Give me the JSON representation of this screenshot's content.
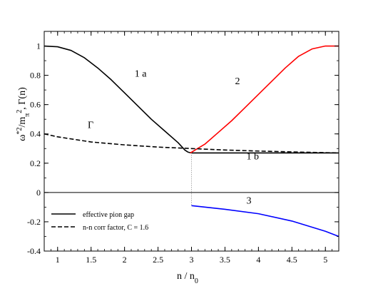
{
  "chart_data": {
    "type": "line",
    "title": "",
    "xlabel": {
      "main": "n / n",
      "sub": "0"
    },
    "ylabel": {
      "part1": "ω",
      "sup1": "*2",
      "part2": "/m",
      "sub2": "π",
      "sup2": "2",
      "part3": ", Γ(n)"
    },
    "xlim": [
      0.8,
      5.2
    ],
    "ylim": [
      -0.4,
      1.1
    ],
    "xticks": [
      1,
      1.5,
      2,
      2.5,
      3,
      3.5,
      4,
      4.5,
      5
    ],
    "xtick_labels": [
      "1",
      "1.5",
      "2",
      "2.5",
      "3",
      "3.5",
      "4",
      "4.5",
      "5"
    ],
    "yticks": [
      -0.4,
      -0.2,
      0,
      0.2,
      0.4,
      0.6,
      0.8,
      1
    ],
    "ytick_labels": [
      "-0.4",
      "-0.2",
      "0",
      "0.2",
      "0.4",
      "0.6",
      "0.8",
      "1"
    ],
    "grid": false,
    "zero_line": true,
    "legend_position": "bottom-left",
    "colors": {
      "branch_1": "#000000",
      "branch_2": "#ff0000",
      "branch_3": "#0000ff",
      "gamma": "#000000",
      "connector": "#808080"
    },
    "series": [
      {
        "name": "effective pion gap",
        "label": "1 a",
        "style": "solid",
        "color": "#000000",
        "x": [
          0.8,
          1.0,
          1.2,
          1.4,
          1.6,
          1.8,
          2.0,
          2.2,
          2.4,
          2.6,
          2.8,
          2.9,
          2.95
        ],
        "y": [
          1.0,
          0.995,
          0.97,
          0.92,
          0.85,
          0.77,
          0.68,
          0.59,
          0.5,
          0.42,
          0.34,
          0.29,
          0.275
        ]
      },
      {
        "name": "",
        "label": "1 b",
        "style": "solid",
        "color": "#000000",
        "x": [
          2.95,
          3.0,
          3.5,
          4.0,
          4.5,
          5.0,
          5.2
        ],
        "y": [
          0.275,
          0.27,
          0.27,
          0.27,
          0.27,
          0.27,
          0.27
        ]
      },
      {
        "name": "",
        "label": "2",
        "style": "solid",
        "color": "#ff0000",
        "x": [
          2.98,
          3.0,
          3.2,
          3.4,
          3.6,
          3.8,
          4.0,
          4.2,
          4.4,
          4.6,
          4.8,
          5.0,
          5.2
        ],
        "y": [
          0.27,
          0.275,
          0.33,
          0.41,
          0.49,
          0.58,
          0.67,
          0.76,
          0.85,
          0.93,
          0.98,
          1.0,
          1.0
        ]
      },
      {
        "name": "",
        "label": "3",
        "style": "solid",
        "color": "#0000ff",
        "x": [
          3.0,
          3.5,
          4.0,
          4.5,
          5.0,
          5.2
        ],
        "y": [
          -0.09,
          -0.115,
          -0.145,
          -0.195,
          -0.265,
          -0.3
        ]
      },
      {
        "name": "n-n corr factor, C = 1.6",
        "label": "Γ",
        "style": "dashed",
        "color": "#000000",
        "x": [
          0.8,
          1.0,
          1.5,
          2.0,
          2.5,
          3.0,
          3.5,
          4.0,
          4.5,
          5.0,
          5.2
        ],
        "y": [
          0.4,
          0.38,
          0.345,
          0.325,
          0.31,
          0.3,
          0.29,
          0.283,
          0.277,
          0.272,
          0.27
        ]
      }
    ],
    "connector": {
      "style": "dotted",
      "color": "#808080",
      "x": [
        3.0,
        3.0
      ],
      "y": [
        0.27,
        -0.09
      ]
    },
    "annotations": [
      {
        "text": "1 a",
        "x": 2.15,
        "y": 0.79
      },
      {
        "text": "2",
        "x": 3.65,
        "y": 0.74
      },
      {
        "text": "Γ",
        "x": 1.45,
        "y": 0.44
      },
      {
        "text": "1 b",
        "x": 3.82,
        "y": 0.225
      },
      {
        "text": "3",
        "x": 3.82,
        "y": -0.075
      }
    ]
  }
}
